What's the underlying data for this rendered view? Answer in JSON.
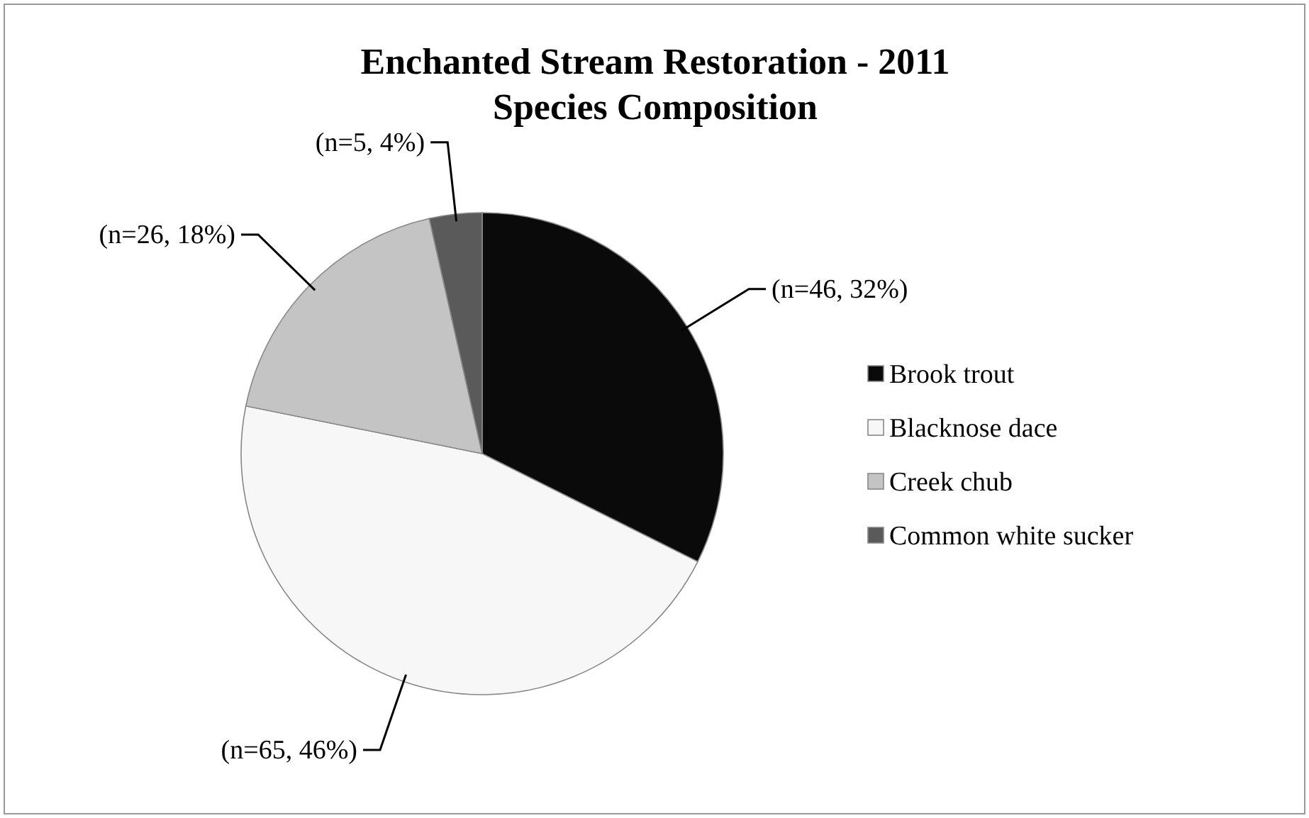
{
  "chart_data": {
    "type": "pie",
    "title": "Enchanted Stream Restoration - 2011 Species Composition",
    "categories": [
      "Brook trout",
      "Blacknose dace",
      "Creek chub",
      "Common white sucker"
    ],
    "values": [
      46,
      65,
      26,
      5
    ],
    "colors": [
      "#0a0a0a",
      "#f7f7f7",
      "#c4c4c4",
      "#5a5a5a"
    ],
    "value_labels": [
      "(n=46, 32%)",
      "(n=65, 46%)",
      "(n=26, 18%)",
      "(n=5, 4%)"
    ],
    "legend": "right"
  }
}
